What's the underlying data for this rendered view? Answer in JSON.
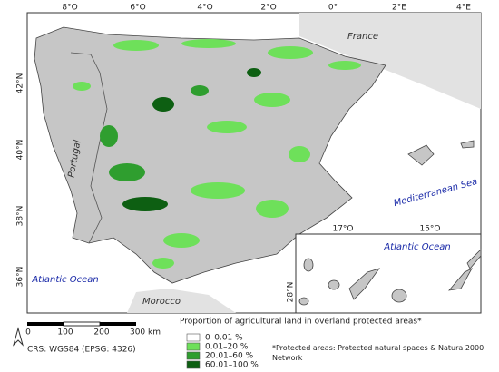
{
  "map": {
    "lon_labels": [
      "8°O",
      "6°O",
      "4°O",
      "2°O",
      "0°",
      "2°E",
      "4°E"
    ],
    "lat_labels": [
      "42°N",
      "40°N",
      "38°N",
      "36°N"
    ],
    "places": {
      "france": "France",
      "portugal": "Portugal",
      "mediterranean": "Mediterranean Sea",
      "atlantic": "Atlantic Ocean",
      "morocco": "Morocco"
    },
    "inset": {
      "lon_labels": [
        "17°O",
        "15°O"
      ],
      "lat_labels": [
        "28°N"
      ],
      "ocean": "Atlantic Ocean"
    },
    "scale": {
      "labels": [
        "0",
        "100",
        "200",
        "300 km"
      ]
    },
    "crs": "CRS: WGS84 (EPSG: 4326)",
    "legend": {
      "title": "Proportion of agricultural land in overland protected areas*",
      "items": [
        {
          "label": "0–0.01 %",
          "color": "#ffffff"
        },
        {
          "label": "0.01–20 %",
          "color": "#6ee05a"
        },
        {
          "label": "20.01–60 %",
          "color": "#2f9e2f"
        },
        {
          "label": "60.01–100 %",
          "color": "#0d5f12"
        }
      ]
    },
    "footnote": "*Protected areas: Protected natural spaces & Natura 2000 Network"
  }
}
